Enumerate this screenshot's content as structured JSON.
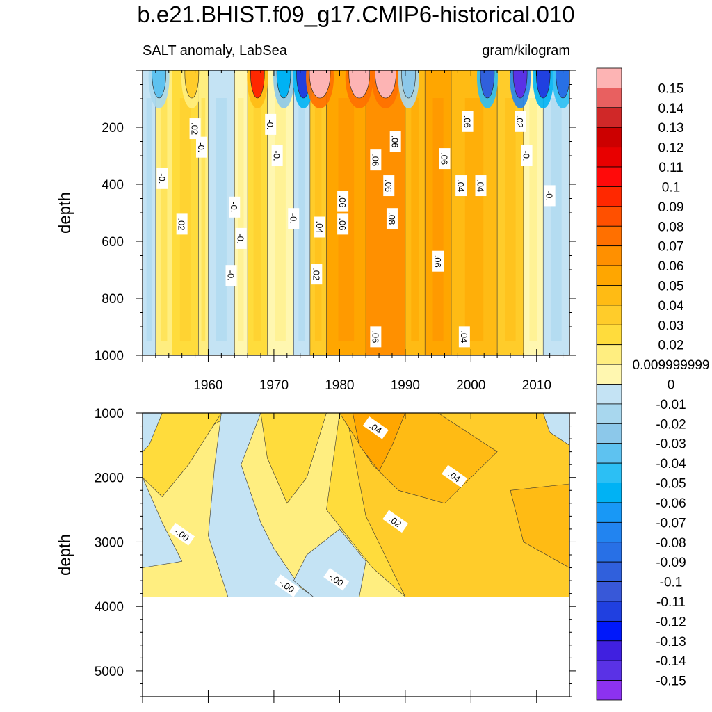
{
  "title": "b.e21.BHIST.f09_g17.CMIP6-historical.010",
  "subtitle_left": "SALT anomaly, LabSea",
  "subtitle_right": "gram/kilogram",
  "chart_data": [
    {
      "type": "heatmap",
      "panel": "upper",
      "ylabel": "depth",
      "xlim": [
        1950,
        2015
      ],
      "ylim": [
        1000,
        0
      ],
      "x_ticks": [
        1960,
        1970,
        1980,
        1990,
        2000,
        2010
      ],
      "x_tick_labels": [
        "1960",
        "1970",
        "1980",
        "1990",
        "2000",
        "2010"
      ],
      "y_ticks": [
        200,
        400,
        600,
        800,
        1000
      ],
      "y_tick_labels": [
        "200",
        "400",
        "600",
        "800",
        "1000"
      ],
      "bands": [
        {
          "x0": 1950,
          "x1": 1952,
          "v": -0.01
        },
        {
          "x0": 1952,
          "x1": 1954.5,
          "v": 0.01
        },
        {
          "x0": 1954.5,
          "x1": 1958.5,
          "v": 0.02
        },
        {
          "x0": 1958.5,
          "x1": 1960,
          "v": 0.01
        },
        {
          "x0": 1960,
          "x1": 1964,
          "v": -0.01
        },
        {
          "x0": 1964,
          "x1": 1966,
          "v": 0.005
        },
        {
          "x0": 1966,
          "x1": 1969,
          "v": 0.02
        },
        {
          "x0": 1969,
          "x1": 1973,
          "v": 0.005
        },
        {
          "x0": 1973,
          "x1": 1975.5,
          "v": -0.01
        },
        {
          "x0": 1975.5,
          "x1": 1978,
          "v": 0.03
        },
        {
          "x0": 1978,
          "x1": 1984,
          "v": 0.05
        },
        {
          "x0": 1984,
          "x1": 1990,
          "v": 0.06
        },
        {
          "x0": 1990,
          "x1": 1993,
          "v": 0.04
        },
        {
          "x0": 1993,
          "x1": 1997,
          "v": 0.055
        },
        {
          "x0": 1997,
          "x1": 2004,
          "v": 0.04
        },
        {
          "x0": 2004,
          "x1": 2008,
          "v": 0.03
        },
        {
          "x0": 2008,
          "x1": 2011,
          "v": 0.005
        },
        {
          "x0": 2011,
          "x1": 2015,
          "v": -0.005
        }
      ],
      "surface_anomalies": [
        {
          "x": 1952.5,
          "v": -0.04
        },
        {
          "x": 1957.5,
          "v": 0.03
        },
        {
          "x": 1967.5,
          "v": 0.09
        },
        {
          "x": 1971.5,
          "v": -0.06
        },
        {
          "x": 1974.5,
          "v": -0.12
        },
        {
          "x": 1977,
          "v": 0.15
        },
        {
          "x": 1983,
          "v": 0.15
        },
        {
          "x": 1987,
          "v": 0.15
        },
        {
          "x": 1990.5,
          "v": -0.03
        },
        {
          "x": 2002.5,
          "v": -0.1
        },
        {
          "x": 2007.5,
          "v": -0.15
        },
        {
          "x": 2011,
          "v": -0.12
        },
        {
          "x": 2014,
          "v": -0.09
        }
      ],
      "contour_labels": [
        {
          "x": 1958,
          "y": 205,
          "text": ".02"
        },
        {
          "x": 1959,
          "y": 270,
          "text": "-0."
        },
        {
          "x": 1953,
          "y": 380,
          "text": "-0."
        },
        {
          "x": 1956,
          "y": 540,
          "text": ".02"
        },
        {
          "x": 1969.5,
          "y": 190,
          "text": "-0."
        },
        {
          "x": 1970.5,
          "y": 300,
          "text": "-0."
        },
        {
          "x": 1964,
          "y": 480,
          "text": "-0."
        },
        {
          "x": 1965,
          "y": 590,
          "text": "-0."
        },
        {
          "x": 1963.5,
          "y": 720,
          "text": "-0."
        },
        {
          "x": 1973,
          "y": 520,
          "text": "-0."
        },
        {
          "x": 1977,
          "y": 550,
          "text": ".04"
        },
        {
          "x": 1976.5,
          "y": 715,
          "text": ".02"
        },
        {
          "x": 1980.5,
          "y": 460,
          "text": ".06"
        },
        {
          "x": 1980.5,
          "y": 540,
          "text": ".06"
        },
        {
          "x": 1985.5,
          "y": 315,
          "text": ".06"
        },
        {
          "x": 1988.5,
          "y": 250,
          "text": ".06"
        },
        {
          "x": 1987.5,
          "y": 405,
          "text": ".06"
        },
        {
          "x": 1988,
          "y": 520,
          "text": ".08"
        },
        {
          "x": 1996,
          "y": 310,
          "text": ".06"
        },
        {
          "x": 1999.5,
          "y": 180,
          "text": ".06"
        },
        {
          "x": 1998.5,
          "y": 405,
          "text": ".04"
        },
        {
          "x": 2001.5,
          "y": 405,
          "text": ".04"
        },
        {
          "x": 1995,
          "y": 670,
          "text": ".06"
        },
        {
          "x": 2007.5,
          "y": 180,
          "text": ".02"
        },
        {
          "x": 2008.5,
          "y": 300,
          "text": "-0."
        },
        {
          "x": 2012,
          "y": 440,
          "text": "-0."
        },
        {
          "x": 1985.5,
          "y": 935,
          "text": ".06"
        },
        {
          "x": 1999,
          "y": 935,
          "text": ".04"
        }
      ]
    },
    {
      "type": "heatmap",
      "panel": "lower",
      "ylabel": "depth",
      "xlim": [
        1950,
        2015
      ],
      "ylim": [
        5400,
        1000
      ],
      "y_ticks": [
        1000,
        2000,
        3000,
        4000,
        5000
      ],
      "y_tick_labels": [
        "1000",
        "2000",
        "3000",
        "4000",
        "5000"
      ],
      "data_bottom_depth": 3850,
      "contour_labels": [
        {
          "x": 1956,
          "y": 2880,
          "text": "-.00"
        },
        {
          "x": 1972,
          "y": 3680,
          "text": "-.00"
        },
        {
          "x": 1979.5,
          "y": 3580,
          "text": "-.00"
        },
        {
          "x": 1985.5,
          "y": 1230,
          "text": ".04"
        },
        {
          "x": 1997.5,
          "y": 1980,
          "text": ".04"
        },
        {
          "x": 1988.5,
          "y": 2680,
          "text": ".02"
        }
      ]
    }
  ],
  "colorbar": {
    "levels": [
      "0.15",
      "0.14",
      "0.13",
      "0.12",
      "0.11",
      "0.1",
      "0.09",
      "0.08",
      "0.07",
      "0.06",
      "0.05",
      "0.04",
      "0.03",
      "0.02",
      "0.009999999",
      "0",
      "-0.01",
      "-0.02",
      "-0.03",
      "-0.04",
      "-0.05",
      "-0.06",
      "-0.07",
      "-0.08",
      "-0.09",
      "-0.1",
      "-0.11",
      "-0.12",
      "-0.13",
      "-0.14",
      "-0.15"
    ],
    "colors": [
      "#FDB4B4",
      "#E86060",
      "#D02828",
      "#CC0000",
      "#E80000",
      "#FF0A0A",
      "#FF2800",
      "#FF5000",
      "#FF7000",
      "#FF9000",
      "#FFA600",
      "#FFBB14",
      "#FFCC2A",
      "#FFDC3C",
      "#FFEE80",
      "#FFF7B0",
      "#C4E3F4",
      "#A8D7EE",
      "#8CC8EA",
      "#5EC2F0",
      "#2CBFF4",
      "#00B2F4",
      "#1898F6",
      "#2284F0",
      "#2870E6",
      "#3060DC",
      "#3858D8",
      "#2040E0",
      "#0018FA",
      "#4020E0",
      "#5A32E6",
      "#8C32F0"
    ]
  }
}
